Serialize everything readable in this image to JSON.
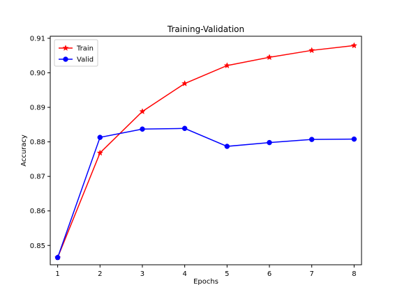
{
  "chart_data": {
    "type": "line",
    "title": "Training-Validation",
    "xlabel": "Epochs",
    "ylabel": "Accuracy",
    "x": [
      1,
      2,
      3,
      4,
      5,
      6,
      7,
      8
    ],
    "xlim": [
      0.825,
      8.175
    ],
    "ylim": [
      0.8444,
      0.9106
    ],
    "xticks": [
      1,
      2,
      3,
      4,
      5,
      6,
      7,
      8
    ],
    "yticks": [
      0.85,
      0.86,
      0.87,
      0.88,
      0.89,
      0.9,
      0.91
    ],
    "ytick_labels": [
      "0.85",
      "0.86",
      "0.87",
      "0.88",
      "0.89",
      "0.90",
      "0.91"
    ],
    "grid": false,
    "legend_position": "top-left",
    "series": [
      {
        "name": "Train",
        "color": "#ff0000",
        "marker": "star",
        "values": [
          0.8465,
          0.8768,
          0.8888,
          0.8969,
          0.9021,
          0.9045,
          0.9065,
          0.9079
        ]
      },
      {
        "name": "Valid",
        "color": "#0000ff",
        "marker": "circle",
        "values": [
          0.8465,
          0.8813,
          0.8837,
          0.8839,
          0.8787,
          0.8798,
          0.8807,
          0.8808
        ]
      }
    ]
  }
}
